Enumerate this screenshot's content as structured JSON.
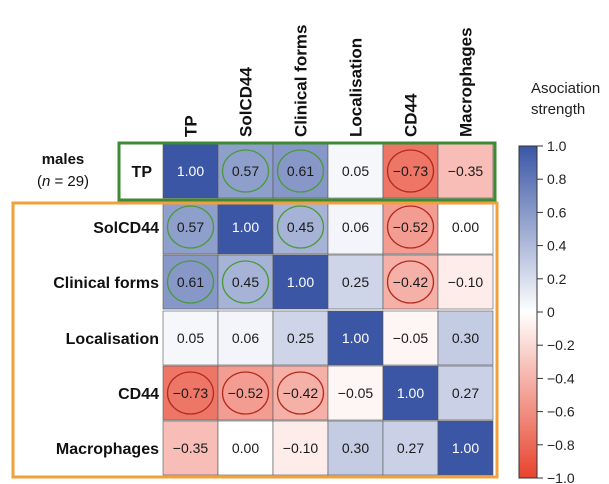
{
  "chart_data": {
    "type": "heatmap",
    "columns": [
      "TP",
      "SolCD44",
      "Clinical forms",
      "Localisation",
      "CD44",
      "Macrophages"
    ],
    "rows": [
      "TP",
      "SolCD44",
      "Clinical forms",
      "Localisation",
      "CD44",
      "Macrophages"
    ],
    "values": [
      [
        1.0,
        0.57,
        0.61,
        0.05,
        -0.73,
        -0.35
      ],
      [
        0.57,
        1.0,
        0.45,
        0.06,
        -0.52,
        0.0
      ],
      [
        0.61,
        0.45,
        1.0,
        0.25,
        -0.42,
        -0.1
      ],
      [
        0.05,
        0.06,
        0.25,
        1.0,
        -0.05,
        0.3
      ],
      [
        -0.73,
        -0.52,
        -0.42,
        -0.05,
        1.0,
        0.27
      ],
      [
        -0.35,
        0.0,
        -0.1,
        0.3,
        0.27,
        1.0
      ]
    ],
    "circled": [
      [
        0,
        1,
        "green"
      ],
      [
        0,
        2,
        "green"
      ],
      [
        0,
        4,
        "red"
      ],
      [
        1,
        0,
        "green"
      ],
      [
        1,
        2,
        "green"
      ],
      [
        1,
        4,
        "red"
      ],
      [
        2,
        0,
        "green"
      ],
      [
        2,
        1,
        "green"
      ],
      [
        2,
        4,
        "red"
      ],
      [
        4,
        0,
        "red"
      ],
      [
        4,
        1,
        "red"
      ],
      [
        4,
        2,
        "red"
      ]
    ],
    "group_label": "males",
    "group_n_prefix": "(",
    "group_n_var": "n",
    "group_n_suffix": " = 29)",
    "colorbar": {
      "title_line1": "Asociation",
      "title_line2": "strength",
      "range": [
        -1.0,
        1.0
      ],
      "ticks": [
        1.0,
        0.8,
        0.6,
        0.4,
        0.2,
        0,
        -0.2,
        -0.4,
        -0.6,
        -0.8,
        -1.0
      ],
      "tick_labels": [
        "1.0",
        "0.8",
        "0.6",
        "0.4",
        "0.2",
        "0",
        "−0.2",
        "−0.4",
        "−0.6",
        "−0.8",
        "−1.0"
      ],
      "positive_color": "#3a56a5",
      "zero_color": "#ffffff",
      "negative_color": "#e8432d"
    },
    "highlight_colors": {
      "tp_box": "#3f8a34",
      "rest_box": "#f2a03d",
      "circle_positive": "#4a9a3a",
      "circle_negative": "#b42a1e"
    }
  }
}
